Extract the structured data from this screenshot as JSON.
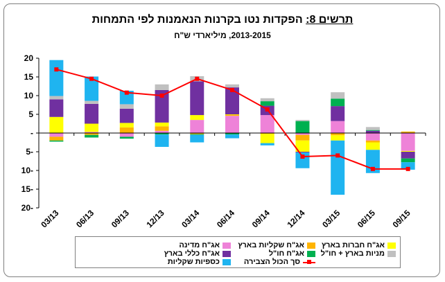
{
  "header": {
    "title_prefix": "תרשים 8:",
    "title_text": "הפקדות נטו בקרנות הנאמנות לפי התמחות",
    "subtitle": "2013-2015,  מיליארדי ש\"ח"
  },
  "chart_data": {
    "type": "bar",
    "stacked": true,
    "categories": [
      "03/13",
      "06/13",
      "09/13",
      "12/13",
      "03/14",
      "06/14",
      "09/14",
      "12/14",
      "03/15",
      "06/15",
      "09/15"
    ],
    "ylim": [
      -20,
      20
    ],
    "yticks": [
      20,
      15,
      10,
      5,
      0,
      -5,
      -10,
      -15,
      -20
    ],
    "ytick_labels": [
      "20",
      "15",
      "10",
      "5",
      "-",
      "5-",
      "10-",
      "15-",
      "20-"
    ],
    "legend_position": "bottom",
    "series": [
      {
        "name": "אג\"ח מדינה",
        "color": "#ee82d8",
        "values": [
          -1.0,
          0.3,
          -1.0,
          0.6,
          3.5,
          4.6,
          4.8,
          -0.5,
          3.2,
          -2.0,
          -4.8
        ]
      },
      {
        "name": "אג\"ח שקליות בארץ",
        "color": "#ffb400",
        "values": [
          -1.0,
          -0.5,
          1.5,
          1.2,
          -0.3,
          0.3,
          -0.2,
          -1.5,
          -0.6,
          -0.5,
          0.4
        ]
      },
      {
        "name": "אג\"ח חברות בארץ",
        "color": "#ffff00",
        "values": [
          4.3,
          2.2,
          1.2,
          1.0,
          1.3,
          0.1,
          -2.5,
          -3.0,
          -1.4,
          -2.0,
          -0.2
        ]
      },
      {
        "name": "אג\"ח כללי בארץ",
        "color": "#7030a0",
        "values": [
          4.7,
          5.3,
          3.8,
          8.7,
          9.0,
          7.2,
          2.5,
          -0.2,
          4.0,
          0.6,
          -1.8
        ]
      },
      {
        "name": "אג\"ח חו\"ל",
        "color": "#00b050",
        "values": [
          -0.3,
          -0.7,
          -0.5,
          -0.4,
          -0.2,
          -0.4,
          1.2,
          3.2,
          2.0,
          0.2,
          -1.0
        ]
      },
      {
        "name": "מניות בארץ + חו\"ל",
        "color": "#c0c0c0",
        "values": [
          0.9,
          0.8,
          1.2,
          1.5,
          1.4,
          0.8,
          0.8,
          0.3,
          1.7,
          0.8,
          0
        ]
      },
      {
        "name": "כספיות שקליות",
        "color": "#1fb4f0",
        "values": [
          9.6,
          6.5,
          3.6,
          -3.3,
          -2.0,
          -1.0,
          -0.6,
          -4.2,
          -14.5,
          -6.2,
          -2.0
        ]
      }
    ],
    "line": {
      "name": "סך הכול הצבירה",
      "color": "#ff0000",
      "values": [
        17.0,
        14.5,
        10.8,
        10.0,
        14.5,
        11.5,
        6.3,
        -6.3,
        -6.0,
        -9.6,
        -9.6
      ]
    }
  },
  "legend": {
    "items": [
      {
        "label": "אג\"ח מדינה",
        "color": "#ee82d8",
        "kind": "box"
      },
      {
        "label": "אג\"ח שקליות בארץ",
        "color": "#ffb400",
        "kind": "box"
      },
      {
        "label": "אג\"ח חברות בארץ",
        "color": "#ffff00",
        "kind": "box"
      },
      {
        "label": "אג\"ח כללי בארץ",
        "color": "#7030a0",
        "kind": "box"
      },
      {
        "label": "אג\"ח חו\"ל",
        "color": "#00b050",
        "kind": "box"
      },
      {
        "label": "מניות בארץ + חו\"ל",
        "color": "#c0c0c0",
        "kind": "box"
      },
      {
        "label": "כספיות שקליות",
        "color": "#1fb4f0",
        "kind": "box"
      },
      {
        "label": "סך הכול הצבירה",
        "color": "#ff0000",
        "kind": "line"
      }
    ]
  }
}
